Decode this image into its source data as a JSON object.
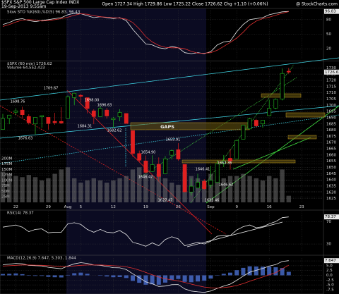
{
  "header": {
    "symbol": "$SPX S&P 500 Large Cap Index INDX",
    "date": "19-Sep-2013 9:55am",
    "quote": "Open 1727.34  High 1729.86  Low 1725.22  Close 1726.62  Chg +1.10 (+0.06%)",
    "source": "@ StockCharts.com"
  },
  "chart_data": [
    {
      "type": "candlestick",
      "title": "$SPX (60 min) 1726.62",
      "last_label": "1726.62",
      "categories": [
        null,
        null,
        "22",
        null,
        null,
        null,
        null,
        "29",
        null,
        null,
        "Aug",
        null,
        "5",
        null,
        null,
        null,
        null,
        "12",
        null,
        null,
        null,
        null,
        "19",
        null,
        null,
        null,
        null,
        "26",
        null,
        null,
        null,
        null,
        "Sep",
        null,
        null,
        null,
        "9",
        null,
        null,
        null,
        null,
        "16",
        null,
        null,
        null,
        null,
        "23"
      ],
      "open": [
        1680.6,
        1689.4,
        1694.4,
        1696.1,
        1691.0,
        1685.0,
        1690.7,
        1690.3,
        1687.1,
        1687.0,
        1689.4,
        1706.1,
        1708.0,
        1706.1,
        1695.5,
        1690.9,
        1696.1,
        1688.4,
        1690.7,
        1693.4,
        1679.6,
        1661.2,
        1655.3,
        1646.8,
        1652.6,
        1645.0,
        1659.9,
        1664.3,
        1652.5,
        1630.3,
        1633.5,
        1638.9,
        1635.9,
        1638.0,
        1653.3,
        1657.4,
        1656.9,
        1672.8,
        1681.0,
        1688.0,
        1685.0,
        1691.7,
        1697.7,
        1705.0,
        1727.34,
        null,
        null
      ],
      "high": [
        1693.1,
        1692.1,
        1697.6,
        1698.8,
        1692.8,
        1690.4,
        1691.9,
        1690.3,
        1693.9,
        1698.4,
        1707.9,
        1709.7,
        1709.2,
        1706.1,
        1696.8,
        1699.4,
        1697.9,
        1690.6,
        1696.8,
        1693.4,
        1679.6,
        1663.6,
        1659.6,
        1659.8,
        1658.1,
        1659.2,
        1664.5,
        1669.5,
        1652.5,
        1641.2,
        1645.0,
        1640.6,
        1651.4,
        1655.7,
        1660.0,
        1664.8,
        1672.4,
        1684.1,
        1689.9,
        1689.0,
        1688.1,
        1704.3,
        1705.5,
        1729.4,
        1729.86,
        null,
        null
      ],
      "low": [
        1680.6,
        1684.8,
        1692.1,
        1690.0,
        1684.5,
        1676.6,
        1681.9,
        1680.5,
        1684.3,
        1685.0,
        1689.4,
        1700.2,
        1702.2,
        1693.4,
        1684.8,
        1690.9,
        1689.2,
        1681.8,
        1687.1,
        1685.4,
        1658.6,
        1654.2,
        1645.3,
        1646.5,
        1639.4,
        1644.6,
        1656.4,
        1655.5,
        1630.0,
        1627.5,
        1633.5,
        1632.0,
        1633.4,
        1637.8,
        1650.3,
        1648.3,
        1656.9,
        1672.8,
        1680.6,
        1682.0,
        1682.0,
        1691.7,
        1696.8,
        1703.9,
        1725.22,
        null,
        null
      ],
      "close": [
        1689.37,
        1692.09,
        1695.53,
        1692.39,
        1685.94,
        1690.25,
        1691.65,
        1685.33,
        1685.96,
        1685.73,
        1706.87,
        1709.67,
        1707.14,
        1697.37,
        1690.91,
        1697.48,
        1691.42,
        1689.47,
        1694.16,
        1685.39,
        1661.32,
        1655.83,
        1646.06,
        1652.35,
        1642.8,
        1656.96,
        1663.5,
        1656.78,
        1630.48,
        1634.96,
        1638.17,
        1632.97,
        1639.77,
        1653.08,
        1655.08,
        1655.17,
        1671.71,
        1683.99,
        1689.13,
        1683.42,
        1687.99,
        1697.6,
        1704.76,
        1725.52,
        1726.62,
        null,
        null
      ],
      "up_color": "#22c022",
      "down_color": "#e02020",
      "ylim": [
        1622,
        1733
      ],
      "yticks": [
        1625,
        1630,
        1635,
        1640,
        1645,
        1650,
        1655,
        1660,
        1665,
        1670,
        1675,
        1680,
        1685,
        1690,
        1695,
        1700,
        1705,
        1710,
        1715,
        1720,
        1725,
        1730
      ],
      "volume": {
        "name": "Volume 64,552,423",
        "color": "#707070",
        "values": [
          140,
          130,
          120,
          115,
          125,
          115,
          100,
          110,
          130,
          150,
          160,
          110,
          90,
          100,
          110,
          100,
          90,
          100,
          110,
          120,
          150,
          160,
          130,
          120,
          130,
          110,
          90,
          80,
          140,
          120,
          110,
          100,
          130,
          120,
          110,
          120,
          120,
          130,
          120,
          110,
          100,
          120,
          110,
          150,
          30,
          null,
          null
        ]
      },
      "vlim": [
        0,
        280
      ],
      "vticks": [
        {
          "value": 25,
          "label": "25M"
        },
        {
          "value": 50,
          "label": "50M"
        },
        {
          "value": 75,
          "label": "75M"
        },
        {
          "value": 100,
          "label": "100M"
        },
        {
          "value": 125,
          "label": "125M"
        },
        {
          "value": 150,
          "label": "150M"
        },
        {
          "value": 175,
          "label": "175M"
        },
        {
          "value": 200,
          "label": "200M"
        }
      ],
      "annotations": [
        "1698.76",
        "1709.67",
        "1698.00",
        "1696.63",
        "1676.63",
        "1684.31",
        "1682.62",
        "GAPS",
        "1654.90",
        "1655.91",
        "1646.47",
        "1627.47",
        "1646.41",
        "1663.36",
        "1646.62",
        "1633.46"
      ],
      "grid": true
    },
    {
      "type": "line",
      "title": "Slow STO %K(60),%D(5) 96.83, 96.43",
      "last_label": "96.83",
      "series": [
        {
          "color": "#e8e8e8",
          "values": [
            70,
            74,
            80,
            82,
            78,
            76,
            78,
            80,
            82,
            84,
            90,
            93,
            92,
            88,
            84,
            86,
            84,
            82,
            84,
            78,
            60,
            45,
            30,
            28,
            22,
            20,
            25,
            22,
            12,
            10,
            12,
            10,
            14,
            28,
            34,
            36,
            55,
            70,
            80,
            82,
            84,
            90,
            93,
            96,
            96.83,
            null,
            null
          ]
        },
        {
          "color": "#e03030",
          "values": [
            66,
            70,
            75,
            79,
            80,
            79,
            77,
            78,
            80,
            82,
            85,
            89,
            92,
            91,
            88,
            86,
            85,
            84,
            83,
            81,
            74,
            61,
            45,
            34,
            27,
            23,
            22,
            22,
            20,
            15,
            11,
            11,
            12,
            17,
            25,
            33,
            42,
            54,
            68,
            77,
            82,
            85,
            89,
            93,
            96.43,
            null,
            null
          ]
        }
      ],
      "ylim": [
        0,
        100
      ],
      "yticks": [
        20,
        50,
        80
      ],
      "grid": true
    },
    {
      "type": "line",
      "title": "RSI(14) 78.37",
      "last_label": "78.37",
      "series": [
        {
          "color": "#e8e8e8",
          "values": [
            60,
            62,
            64,
            60,
            52,
            56,
            57,
            50,
            51,
            51,
            66,
            68,
            65,
            56,
            51,
            56,
            51,
            50,
            54,
            47,
            33,
            30,
            26,
            32,
            27,
            38,
            43,
            39,
            27,
            30,
            33,
            30,
            35,
            44,
            45,
            45,
            55,
            61,
            64,
            59,
            61,
            66,
            70,
            77,
            78.37,
            null,
            null
          ]
        }
      ],
      "ylim": [
        15,
        88
      ],
      "yticks": [
        30,
        70
      ],
      "grid": true
    },
    {
      "type": "line",
      "title": "MACD(12,26,9) 7.647, 5.303, 1.844",
      "last_label": "7.647",
      "series": [
        {
          "color": "#4a6fd0",
          "style": "bars",
          "values": [
            0.7,
            0.8,
            1.0,
            0.6,
            -0.2,
            -0.3,
            -0.3,
            -0.8,
            -1.0,
            -1.1,
            0.2,
            1.1,
            1.4,
            0.8,
            0.0,
            -0.2,
            -0.6,
            -1.0,
            -0.9,
            -1.4,
            -2.9,
            -3.9,
            -4.9,
            -4.7,
            -4.9,
            -3.8,
            -2.5,
            -1.9,
            -3.4,
            -3.6,
            -3.2,
            -2.8,
            -1.7,
            -0.2,
            0.8,
            1.4,
            2.7,
            3.9,
            4.7,
            4.6,
            4.5,
            4.5,
            4.2,
            3.8,
            1.844,
            null,
            null
          ]
        },
        {
          "color": "#e8e8e8",
          "values": [
            5.5,
            5.8,
            6.2,
            6.0,
            5.2,
            5.0,
            4.9,
            4.2,
            3.8,
            3.4,
            4.8,
            6.0,
            6.6,
            6.2,
            5.4,
            5.2,
            4.6,
            4.0,
            3.9,
            3.0,
            0.8,
            -1.2,
            -3.4,
            -4.4,
            -5.8,
            -5.6,
            -4.9,
            -4.8,
            -7.1,
            -8.2,
            -8.6,
            -8.9,
            -8.2,
            -6.8,
            -5.6,
            -4.6,
            -2.6,
            -0.4,
            1.6,
            2.6,
            3.6,
            4.8,
            5.6,
            7.2,
            7.647,
            null,
            null
          ]
        },
        {
          "color": "#e03030",
          "values": [
            4.8,
            5.0,
            5.2,
            5.4,
            5.4,
            5.3,
            5.2,
            5.0,
            4.8,
            4.5,
            4.6,
            4.9,
            5.2,
            5.4,
            5.4,
            5.4,
            5.2,
            5.0,
            4.8,
            4.4,
            3.7,
            2.7,
            1.5,
            0.3,
            -0.9,
            -1.8,
            -2.4,
            -2.9,
            -3.7,
            -4.6,
            -5.4,
            -6.1,
            -6.5,
            -6.6,
            -6.4,
            -6.0,
            -5.3,
            -4.3,
            -3.1,
            -2.0,
            -0.9,
            0.3,
            1.4,
            3.4,
            5.303,
            null,
            null
          ]
        }
      ],
      "ylim": [
        -9,
        9
      ],
      "yticks": [
        -7.5,
        {
          "value": -5,
          "label": "-5.0"
        },
        -2.5,
        {
          "value": 0,
          "label": "0.0"
        },
        2.5,
        {
          "value": 5,
          "label": "5.0"
        },
        7.5
      ],
      "grid": true
    }
  ]
}
